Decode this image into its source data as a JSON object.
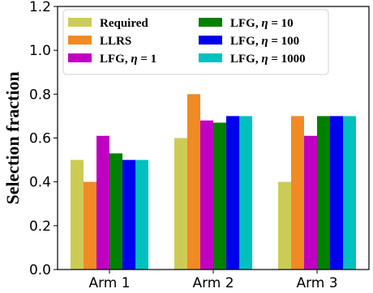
{
  "chart_data": {
    "type": "bar",
    "title": "",
    "xlabel": "",
    "ylabel": "Selection fraction",
    "ylim": [
      0,
      1.2
    ],
    "yticks": [
      "0.0",
      "0.2",
      "0.4",
      "0.6",
      "0.8",
      "1.0",
      "1.2"
    ],
    "categories": [
      "Arm 1",
      "Arm 2",
      "Arm 3"
    ],
    "grid": false,
    "legend_position": "top-left",
    "series": [
      {
        "name": "Required",
        "color": "#cccc55",
        "values": [
          0.5,
          0.6,
          0.4
        ]
      },
      {
        "name": "LLRS",
        "color": "#f08a24",
        "values": [
          0.4,
          0.8,
          0.7
        ]
      },
      {
        "name": "LFG, η = 1",
        "color": "#c000c0",
        "values": [
          0.61,
          0.68,
          0.61
        ]
      },
      {
        "name": "LFG, η = 10",
        "color": "#008000",
        "values": [
          0.53,
          0.67,
          0.7
        ]
      },
      {
        "name": "LFG, η = 100",
        "color": "#0000ee",
        "values": [
          0.5,
          0.7,
          0.7
        ]
      },
      {
        "name": "LFG, η = 1000",
        "color": "#00c0c0",
        "values": [
          0.5,
          0.7,
          0.7
        ]
      }
    ]
  }
}
